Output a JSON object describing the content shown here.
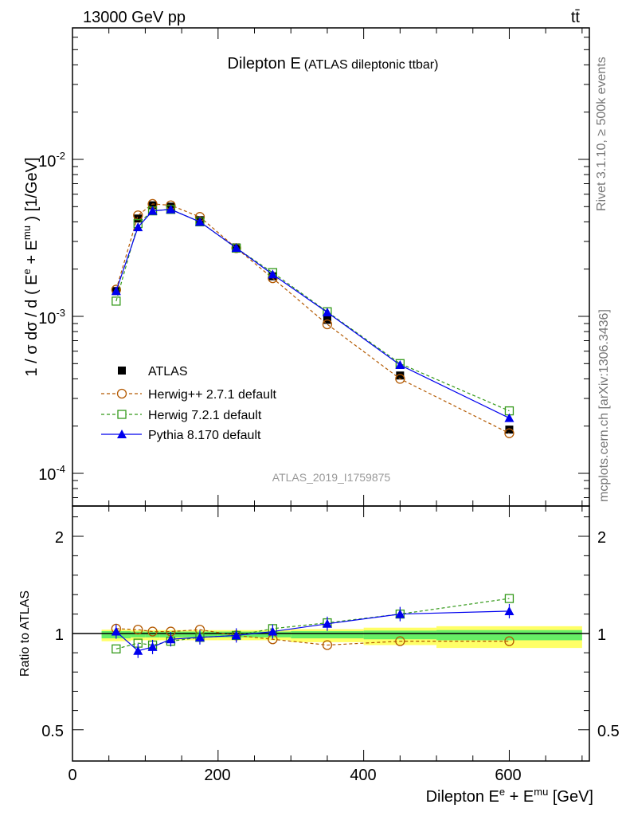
{
  "header": {
    "left": "13000 GeV pp",
    "right": "tt̄"
  },
  "side_labels": {
    "rivet": "Rivet 3.1.10, ≥ 500k events",
    "mcplots": "mcplots.cern.ch [arXiv:1306.3436]"
  },
  "colors": {
    "atlas": "#000000",
    "herwigpp": "#b35900",
    "herwig7": "#339919",
    "pythia": "#0000ee",
    "band_inner": "#66ee66",
    "band_outer": "#ffff66"
  },
  "chart_data": [
    {
      "type": "line",
      "title": "Dilepton E",
      "subtitle": "(ATLAS dileptonic ttbar)",
      "analysis_id": "ATLAS_2019_I1759875",
      "ylabel": "1 / σ  dσ / d ( E^e + E^mu ) [1/GeV]",
      "yscale": "log",
      "ylim": [
        6e-05,
        0.1
      ],
      "xlim": [
        0,
        710
      ],
      "yticks": [
        "10^-2",
        "10^-3",
        "10^-4"
      ],
      "legend_position": "bottom-left",
      "x": [
        60,
        90,
        110,
        135,
        175,
        225,
        275,
        350,
        450,
        600
      ],
      "series": [
        {
          "name": "ATLAS",
          "marker": "square-filled",
          "values": [
            0.00145,
            0.0042,
            0.0051,
            0.005,
            0.0041,
            0.00275,
            0.0018,
            0.00095,
            0.00042,
            0.00019
          ]
        },
        {
          "name": "Herwig++ 2.7.1 default",
          "marker": "circle-open",
          "style": "dashed",
          "values": [
            0.00148,
            0.0044,
            0.0052,
            0.0051,
            0.0043,
            0.00272,
            0.00175,
            0.00089,
            0.0004,
            0.00018
          ]
        },
        {
          "name": "Herwig 7.2.1 default",
          "marker": "square-open",
          "style": "dashed",
          "values": [
            0.00125,
            0.0039,
            0.0047,
            0.0048,
            0.004,
            0.00272,
            0.0019,
            0.00107,
            0.0005,
            0.00025
          ]
        },
        {
          "name": "Pythia 8.170 default",
          "marker": "triangle-filled",
          "style": "solid",
          "values": [
            0.00145,
            0.0037,
            0.0047,
            0.0048,
            0.004,
            0.00273,
            0.00185,
            0.00106,
            0.00049,
            0.000225
          ]
        }
      ]
    },
    {
      "type": "line",
      "ylabel": "Ratio to ATLAS",
      "xlabel": "Dilepton E^e + E^mu [GeV]",
      "ylim": [
        0.4,
        2.35
      ],
      "xlim": [
        0,
        710
      ],
      "yticks": [
        "0.5",
        "1",
        "2"
      ],
      "xticks": [
        "0",
        "200",
        "400",
        "600"
      ],
      "uncertainty_bands": [
        {
          "x": [
            40,
            80
          ],
          "inner": 0.025,
          "outer": 0.04
        },
        {
          "x": [
            80,
            100
          ],
          "inner": 0.02,
          "outer": 0.035
        },
        {
          "x": [
            100,
            120
          ],
          "inner": 0.02,
          "outer": 0.035
        },
        {
          "x": [
            120,
            150
          ],
          "inner": 0.02,
          "outer": 0.035
        },
        {
          "x": [
            150,
            200
          ],
          "inner": 0.02,
          "outer": 0.035
        },
        {
          "x": [
            200,
            250
          ],
          "inner": 0.02,
          "outer": 0.035
        },
        {
          "x": [
            250,
            300
          ],
          "inner": 0.02,
          "outer": 0.035
        },
        {
          "x": [
            300,
            400
          ],
          "inner": 0.025,
          "outer": 0.045
        },
        {
          "x": [
            400,
            500
          ],
          "inner": 0.03,
          "outer": 0.06
        },
        {
          "x": [
            500,
            700
          ],
          "inner": 0.035,
          "outer": 0.075
        }
      ],
      "x": [
        60,
        90,
        110,
        135,
        175,
        225,
        275,
        350,
        450,
        600
      ],
      "series": [
        {
          "name": "Herwig++ 2.7.1 default",
          "values": [
            1.05,
            1.04,
            1.02,
            1.02,
            1.04,
            0.99,
            0.97,
            0.94,
            0.96,
            0.96
          ]
        },
        {
          "name": "Herwig 7.2.1 default",
          "values": [
            0.92,
            0.95,
            0.94,
            0.96,
            0.98,
            0.99,
            1.05,
            1.11,
            1.2,
            1.36
          ]
        },
        {
          "name": "Pythia 8.170 default",
          "values": [
            1.02,
            0.91,
            0.93,
            0.97,
            0.98,
            0.99,
            1.02,
            1.1,
            1.2,
            1.23
          ]
        }
      ]
    }
  ]
}
